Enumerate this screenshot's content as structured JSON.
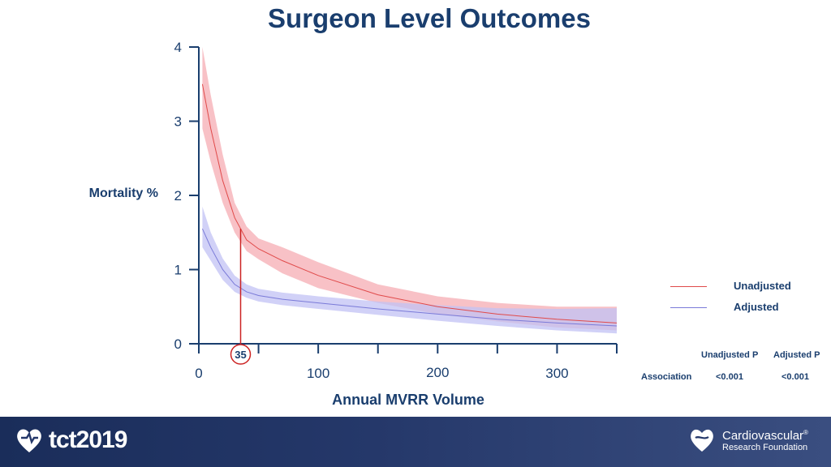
{
  "title": "Surgeon Level Outcomes",
  "footer": {
    "tct_logo_text": "tct2019",
    "crf_line1": "Cardiovascular",
    "crf_line2": "Research Foundation",
    "crf_reg": "®"
  },
  "legend": [
    {
      "name": "Unadjusted",
      "color": "#e04a4a"
    },
    {
      "name": "Adjusted",
      "color": "#7a7ad8"
    }
  ],
  "p_table": {
    "headers": [
      "Unadjusted P",
      "Adjusted P"
    ],
    "row_label": "Association",
    "values": [
      "<0.001",
      "<0.001"
    ]
  },
  "chart_data": {
    "type": "line",
    "title": "Surgeon Level Outcomes",
    "xlabel": "Annual MVRR Volume",
    "ylabel": "Mortality %",
    "xlim": [
      0,
      350
    ],
    "ylim": [
      0,
      4
    ],
    "x_ticks": [
      0,
      100,
      200,
      300
    ],
    "y_ticks": [
      0,
      1,
      2,
      3,
      4
    ],
    "grid": false,
    "legend_position": "right",
    "annotation": {
      "x": 35,
      "label": "35",
      "color": "#cc2222"
    },
    "series": [
      {
        "name": "Unadjusted",
        "color": "#e04a4a",
        "band_color": "#f7b6bc",
        "x": [
          3,
          10,
          20,
          30,
          40,
          50,
          70,
          100,
          150,
          200,
          250,
          300,
          350
        ],
        "y": [
          3.5,
          2.9,
          2.2,
          1.7,
          1.4,
          1.28,
          1.12,
          0.92,
          0.66,
          0.5,
          0.4,
          0.33,
          0.28
        ],
        "lower": [
          2.9,
          2.45,
          1.9,
          1.5,
          1.25,
          1.14,
          0.95,
          0.75,
          0.55,
          0.4,
          0.3,
          0.22,
          0.18
        ],
        "upper": [
          4.0,
          3.35,
          2.55,
          1.9,
          1.58,
          1.42,
          1.3,
          1.1,
          0.8,
          0.64,
          0.55,
          0.5,
          0.5
        ]
      },
      {
        "name": "Adjusted",
        "color": "#7a7ad8",
        "band_color": "#c2c2f4",
        "x": [
          3,
          10,
          20,
          30,
          40,
          50,
          70,
          100,
          150,
          200,
          250,
          300,
          350
        ],
        "y": [
          1.55,
          1.3,
          1.0,
          0.8,
          0.7,
          0.65,
          0.6,
          0.55,
          0.47,
          0.4,
          0.33,
          0.28,
          0.24
        ],
        "lower": [
          1.3,
          1.12,
          0.86,
          0.7,
          0.62,
          0.57,
          0.52,
          0.47,
          0.39,
          0.31,
          0.24,
          0.18,
          0.14
        ],
        "upper": [
          1.85,
          1.5,
          1.15,
          0.92,
          0.8,
          0.74,
          0.69,
          0.64,
          0.57,
          0.52,
          0.48,
          0.47,
          0.48
        ]
      }
    ]
  }
}
